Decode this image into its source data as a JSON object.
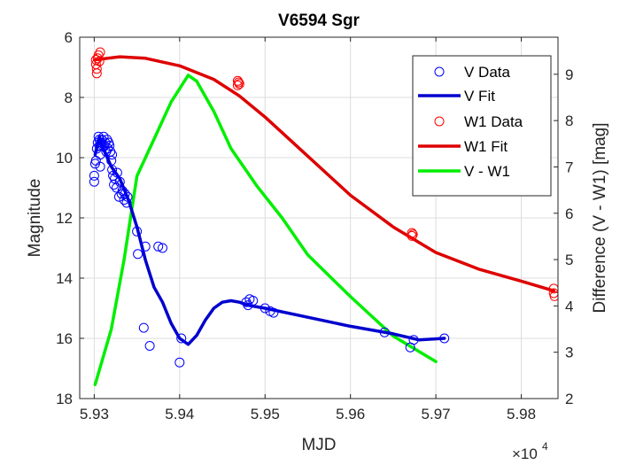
{
  "chart_data": {
    "type": "scatter",
    "title": "V6594 Sgr",
    "xlabel": "MJD",
    "ylabel_left": "Magnitude",
    "ylabel_right": "Difference (V - W1) [mag]",
    "x_exponent_label": "×10",
    "x_exponent_power": "4",
    "xlim": [
      59.283,
      59.843
    ],
    "xticks": [
      59.3,
      59.4,
      59.5,
      59.6,
      59.7,
      59.8
    ],
    "xtick_labels": [
      "5.93",
      "5.94",
      "5.95",
      "5.96",
      "5.97",
      "5.98"
    ],
    "ylim_left_reversed": [
      6,
      18
    ],
    "yticks_left": [
      6,
      8,
      10,
      12,
      14,
      16,
      18
    ],
    "ylim_right": [
      2,
      9.8
    ],
    "yticks_right": [
      2,
      3,
      4,
      5,
      6,
      7,
      8,
      9
    ],
    "grid": true,
    "legend_position": "top-right",
    "legend": [
      "V Data",
      "V Fit",
      "W1 Data",
      "W1 Fit",
      "V - W1"
    ],
    "colors": {
      "v": "#0000ff",
      "v_fit": "#0000cd",
      "w1": "#ff0000",
      "w1_fit": "#dd0000",
      "diff": "#00ee00"
    },
    "series": [
      {
        "name": "V Data",
        "axis": "left",
        "style": "circles",
        "points": [
          [
            59.3,
            10.6
          ],
          [
            59.3,
            10.8
          ],
          [
            59.301,
            10.2
          ],
          [
            59.302,
            10.1
          ],
          [
            59.303,
            9.7
          ],
          [
            59.304,
            9.5
          ],
          [
            59.305,
            9.3
          ],
          [
            59.306,
            9.4
          ],
          [
            59.306,
            9.6
          ],
          [
            59.307,
            9.9
          ],
          [
            59.307,
            10.3
          ],
          [
            59.308,
            9.5
          ],
          [
            59.309,
            9.4
          ],
          [
            59.31,
            9.6
          ],
          [
            59.311,
            9.3
          ],
          [
            59.312,
            9.6
          ],
          [
            59.313,
            9.5
          ],
          [
            59.314,
            9.8
          ],
          [
            59.315,
            9.4
          ],
          [
            59.316,
            9.7
          ],
          [
            59.317,
            9.5
          ],
          [
            59.318,
            9.6
          ],
          [
            59.319,
            9.8
          ],
          [
            59.32,
            10.1
          ],
          [
            59.321,
            10.4
          ],
          [
            59.321,
            9.9
          ],
          [
            59.322,
            10.6
          ],
          [
            59.323,
            10.9
          ],
          [
            59.324,
            10.7
          ],
          [
            59.326,
            11.0
          ],
          [
            59.327,
            10.5
          ],
          [
            59.329,
            11.3
          ],
          [
            59.33,
            10.8
          ],
          [
            59.332,
            11.2
          ],
          [
            59.333,
            11.1
          ],
          [
            59.335,
            11.4
          ],
          [
            59.336,
            11.2
          ],
          [
            59.338,
            11.5
          ],
          [
            59.339,
            11.3
          ],
          [
            59.35,
            12.45
          ],
          [
            59.351,
            13.2
          ],
          [
            59.358,
            15.65
          ],
          [
            59.36,
            12.95
          ],
          [
            59.365,
            16.25
          ],
          [
            59.375,
            12.95
          ],
          [
            59.38,
            13.0
          ],
          [
            59.4,
            16.8
          ],
          [
            59.402,
            16.0
          ],
          [
            59.478,
            14.8
          ],
          [
            59.48,
            14.9
          ],
          [
            59.482,
            14.7
          ],
          [
            59.486,
            14.75
          ],
          [
            59.5,
            15.0
          ],
          [
            59.506,
            15.1
          ],
          [
            59.51,
            15.15
          ],
          [
            59.64,
            15.8
          ],
          [
            59.67,
            16.3
          ],
          [
            59.674,
            16.05
          ],
          [
            59.71,
            16.0
          ]
        ]
      },
      {
        "name": "V Fit",
        "axis": "left",
        "style": "line",
        "points": [
          [
            59.301,
            9.9
          ],
          [
            59.306,
            9.3
          ],
          [
            59.312,
            9.8
          ],
          [
            59.32,
            10.3
          ],
          [
            59.33,
            10.7
          ],
          [
            59.34,
            11.4
          ],
          [
            59.35,
            12.3
          ],
          [
            59.36,
            13.4
          ],
          [
            59.37,
            14.3
          ],
          [
            59.38,
            14.8
          ],
          [
            59.39,
            15.5
          ],
          [
            59.4,
            16.0
          ],
          [
            59.41,
            16.2
          ],
          [
            59.42,
            15.9
          ],
          [
            59.43,
            15.4
          ],
          [
            59.44,
            15.0
          ],
          [
            59.45,
            14.8
          ],
          [
            59.46,
            14.75
          ],
          [
            59.47,
            14.8
          ],
          [
            59.48,
            14.9
          ],
          [
            59.5,
            15.0
          ],
          [
            59.55,
            15.3
          ],
          [
            59.6,
            15.6
          ],
          [
            59.65,
            15.85
          ],
          [
            59.68,
            16.05
          ],
          [
            59.71,
            16.0
          ]
        ]
      },
      {
        "name": "W1 Data",
        "axis": "left",
        "style": "circles",
        "points": [
          [
            59.302,
            6.75
          ],
          [
            59.302,
            6.9
          ],
          [
            59.303,
            7.05
          ],
          [
            59.303,
            7.2
          ],
          [
            59.304,
            6.7
          ],
          [
            59.305,
            6.6
          ],
          [
            59.306,
            6.8
          ],
          [
            59.307,
            6.5
          ],
          [
            59.468,
            7.45
          ],
          [
            59.468,
            7.6
          ],
          [
            59.469,
            7.5
          ],
          [
            59.47,
            7.55
          ],
          [
            59.672,
            12.5
          ],
          [
            59.672,
            12.6
          ],
          [
            59.673,
            12.55
          ],
          [
            59.838,
            14.35
          ],
          [
            59.838,
            14.5
          ],
          [
            59.839,
            14.6
          ]
        ]
      },
      {
        "name": "W1 Fit",
        "axis": "left",
        "style": "line",
        "points": [
          [
            59.301,
            6.75
          ],
          [
            59.33,
            6.65
          ],
          [
            59.36,
            6.7
          ],
          [
            59.4,
            6.95
          ],
          [
            59.44,
            7.4
          ],
          [
            59.47,
            7.95
          ],
          [
            59.5,
            8.65
          ],
          [
            59.55,
            9.95
          ],
          [
            59.6,
            11.25
          ],
          [
            59.65,
            12.3
          ],
          [
            59.7,
            13.15
          ],
          [
            59.75,
            13.7
          ],
          [
            59.8,
            14.1
          ],
          [
            59.838,
            14.42
          ]
        ]
      },
      {
        "name": "V - W1",
        "axis": "right",
        "style": "line",
        "points": [
          [
            59.301,
            2.3
          ],
          [
            59.32,
            3.5
          ],
          [
            59.335,
            5.0
          ],
          [
            59.35,
            6.8
          ],
          [
            59.37,
            7.6
          ],
          [
            59.39,
            8.4
          ],
          [
            59.41,
            8.98
          ],
          [
            59.42,
            8.85
          ],
          [
            59.44,
            8.2
          ],
          [
            59.46,
            7.4
          ],
          [
            59.49,
            6.6
          ],
          [
            59.52,
            5.9
          ],
          [
            59.55,
            5.1
          ],
          [
            59.6,
            4.2
          ],
          [
            59.65,
            3.35
          ],
          [
            59.7,
            2.8
          ]
        ]
      }
    ]
  }
}
